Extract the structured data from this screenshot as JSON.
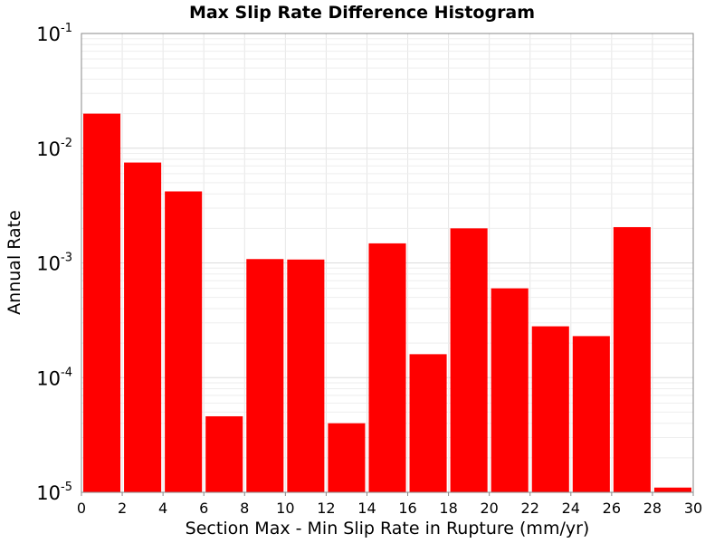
{
  "chart_data": {
    "type": "bar",
    "title": "Max Slip Rate Difference Histogram",
    "xlabel": "Section Max - Min Slip Rate in Rupture (mm/yr)",
    "ylabel": "Annual Rate",
    "xlim": [
      0,
      30
    ],
    "ylim": [
      1e-05,
      0.1
    ],
    "yscale": "log",
    "grid": true,
    "bar_color": "#ff0000",
    "x_ticks": [
      "0",
      "2",
      "4",
      "6",
      "8",
      "10",
      "12",
      "14",
      "16",
      "18",
      "20",
      "22",
      "24",
      "26",
      "28",
      "30"
    ],
    "y_ticks": [
      {
        "base": "10",
        "exp": "-5",
        "value": 1e-05
      },
      {
        "base": "10",
        "exp": "-4",
        "value": 0.0001
      },
      {
        "base": "10",
        "exp": "-3",
        "value": 0.001
      },
      {
        "base": "10",
        "exp": "-2",
        "value": 0.01
      },
      {
        "base": "10",
        "exp": "-1",
        "value": 0.1
      }
    ],
    "bins": [
      {
        "x0": 0,
        "x1": 2,
        "value": 0.02
      },
      {
        "x0": 2,
        "x1": 4,
        "value": 0.0075
      },
      {
        "x0": 4,
        "x1": 6,
        "value": 0.0042
      },
      {
        "x0": 6,
        "x1": 8,
        "value": 4.6e-05
      },
      {
        "x0": 8,
        "x1": 10,
        "value": 0.00108
      },
      {
        "x0": 10,
        "x1": 12,
        "value": 0.00107
      },
      {
        "x0": 12,
        "x1": 14,
        "value": 4e-05
      },
      {
        "x0": 14,
        "x1": 16,
        "value": 0.00148
      },
      {
        "x0": 16,
        "x1": 18,
        "value": 0.00016
      },
      {
        "x0": 18,
        "x1": 20,
        "value": 0.002
      },
      {
        "x0": 20,
        "x1": 22,
        "value": 0.0006
      },
      {
        "x0": 22,
        "x1": 24,
        "value": 0.00028
      },
      {
        "x0": 24,
        "x1": 26,
        "value": 0.00023
      },
      {
        "x0": 26,
        "x1": 28,
        "value": 0.00205
      },
      {
        "x0": 28,
        "x1": 30,
        "value": 1.1e-05
      }
    ]
  }
}
